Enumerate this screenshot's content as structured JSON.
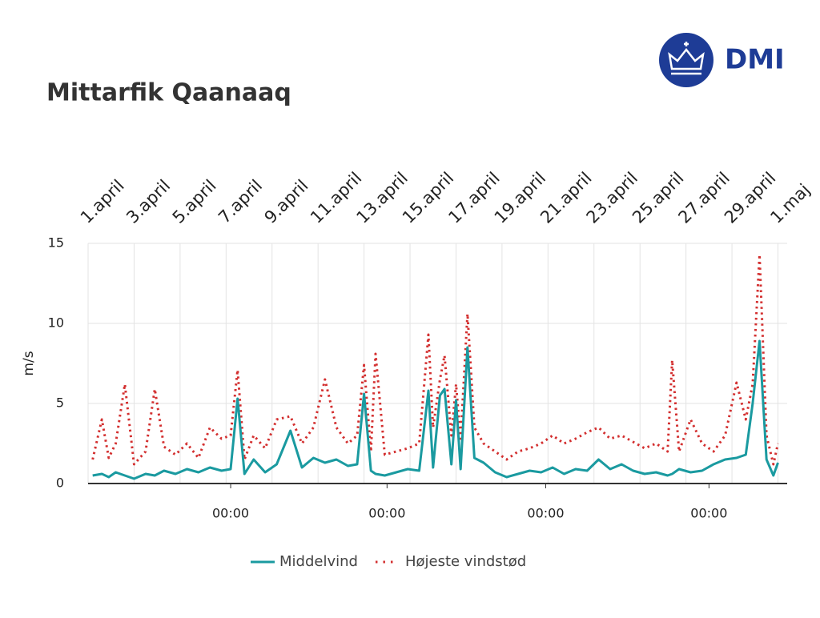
{
  "logo": "DMI",
  "chart_data": {
    "type": "line",
    "title": "Mittarfik Qaanaaq",
    "y_label": "m/s",
    "x": [
      0.2,
      0.6,
      0.9,
      1.2,
      1.6,
      2.0,
      2.5,
      2.9,
      3.3,
      3.8,
      4.3,
      4.8,
      5.3,
      5.8,
      6.2,
      6.5,
      6.8,
      7.2,
      7.7,
      8.2,
      8.8,
      9.3,
      9.8,
      10.3,
      10.8,
      11.3,
      11.7,
      12.0,
      12.3,
      12.5,
      12.9,
      13.4,
      13.9,
      14.4,
      14.8,
      15.0,
      15.3,
      15.5,
      15.8,
      16.0,
      16.2,
      16.5,
      16.8,
      17.2,
      17.7,
      18.2,
      18.7,
      19.2,
      19.7,
      20.2,
      20.7,
      21.2,
      21.7,
      22.2,
      22.7,
      23.2,
      23.7,
      24.2,
      24.7,
      25.2,
      25.4,
      25.7,
      26.2,
      26.7,
      27.2,
      27.7,
      28.2,
      28.6,
      28.9,
      29.2,
      29.5,
      29.8,
      30.0
    ],
    "series": [
      {
        "name": "Middelvind",
        "color": "#1a9aa0",
        "style": "solid",
        "values": [
          0.5,
          0.6,
          0.4,
          0.7,
          0.5,
          0.3,
          0.6,
          0.5,
          0.8,
          0.6,
          0.9,
          0.7,
          1.0,
          0.8,
          0.9,
          5.3,
          0.6,
          1.5,
          0.7,
          1.2,
          3.3,
          1.0,
          1.6,
          1.3,
          1.5,
          1.1,
          1.2,
          5.6,
          0.8,
          0.6,
          0.5,
          0.7,
          0.9,
          0.8,
          5.8,
          1.0,
          5.5,
          5.9,
          1.2,
          5.2,
          0.9,
          8.5,
          1.6,
          1.3,
          0.7,
          0.4,
          0.6,
          0.8,
          0.7,
          1.0,
          0.6,
          0.9,
          0.8,
          1.5,
          0.9,
          1.2,
          0.8,
          0.6,
          0.7,
          0.5,
          0.6,
          0.9,
          0.7,
          0.8,
          1.2,
          1.5,
          1.6,
          1.8,
          5.0,
          8.9,
          1.5,
          0.5,
          1.3
        ]
      },
      {
        "name": "Højeste vindstød",
        "color": "#d32f2f",
        "style": "dotted",
        "values": [
          1.5,
          4.0,
          1.6,
          2.5,
          6.2,
          1.2,
          2.0,
          5.9,
          2.3,
          1.8,
          2.5,
          1.6,
          3.5,
          2.8,
          3.0,
          7.1,
          1.5,
          3.0,
          2.2,
          4.0,
          4.2,
          2.5,
          3.5,
          6.5,
          3.5,
          2.5,
          3.0,
          7.4,
          2.0,
          8.1,
          1.8,
          2.0,
          2.2,
          2.5,
          9.3,
          3.5,
          6.5,
          8.0,
          3.0,
          6.2,
          2.8,
          10.6,
          3.5,
          2.5,
          2.0,
          1.5,
          2.0,
          2.2,
          2.5,
          3.0,
          2.5,
          2.8,
          3.2,
          3.5,
          2.8,
          3.0,
          2.6,
          2.2,
          2.5,
          2.0,
          7.7,
          2.0,
          4.0,
          2.5,
          2.0,
          3.0,
          6.3,
          4.0,
          6.2,
          14.3,
          3.0,
          1.2,
          2.5
        ]
      }
    ],
    "xlim": [
      0,
      30.4
    ],
    "xticks": [
      {
        "value": 0,
        "label": "1.april"
      },
      {
        "value": 2,
        "label": "3.april"
      },
      {
        "value": 4,
        "label": "5.april"
      },
      {
        "value": 6,
        "label": "7.april"
      },
      {
        "value": 8,
        "label": "9.april"
      },
      {
        "value": 10,
        "label": "11.april"
      },
      {
        "value": 12,
        "label": "13.april"
      },
      {
        "value": 14,
        "label": "15.april"
      },
      {
        "value": 16,
        "label": "17.april"
      },
      {
        "value": 18,
        "label": "19.april"
      },
      {
        "value": 20,
        "label": "21.april"
      },
      {
        "value": 22,
        "label": "23.april"
      },
      {
        "value": 24,
        "label": "25.april"
      },
      {
        "value": 26,
        "label": "27.april"
      },
      {
        "value": 28,
        "label": "29.april"
      },
      {
        "value": 30,
        "label": "1.maj"
      }
    ],
    "xticks2": [
      {
        "value": 6.2,
        "label": "00:00"
      },
      {
        "value": 13.0,
        "label": "00:00"
      },
      {
        "value": 19.9,
        "label": "00:00"
      },
      {
        "value": 27.0,
        "label": "00:00"
      }
    ],
    "ylim": [
      0,
      15
    ],
    "yticks": [
      0,
      5,
      10,
      15
    ],
    "grid": true,
    "legend": "bottom"
  }
}
